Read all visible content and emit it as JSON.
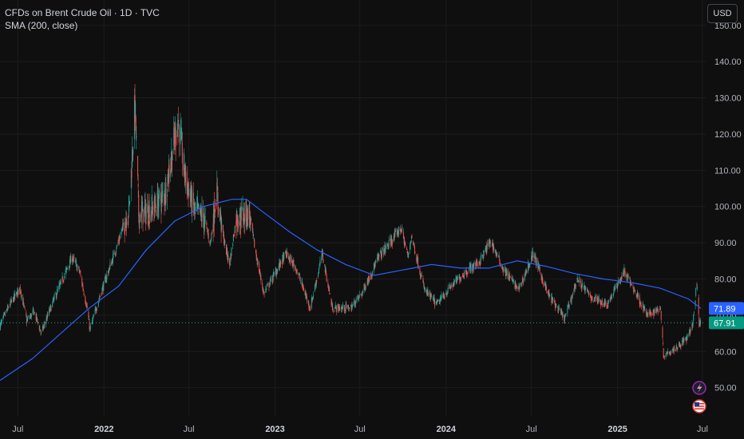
{
  "legend": {
    "symbol_title": "CFDs on Brent Crude Oil · 1D · TVC",
    "indicator": "SMA (200, close)"
  },
  "currency_button": "USD",
  "colors": {
    "background": "#0f0f0f",
    "grid": "#1c1c1c",
    "up": "#26a69a",
    "down": "#ef5350",
    "sma": "#2962ff",
    "last_price_line": "#26a69a",
    "axis_text": "#b2b5be"
  },
  "icons": [
    "lightning-icon",
    "us-flag-icon"
  ],
  "chart_data": {
    "type": "candlestick",
    "title": "CFDs on Brent Crude Oil · 1D · TVC",
    "y_axis": {
      "ticks": [
        "50.00",
        "60.00",
        "70.00",
        "80.00",
        "90.00",
        "100.00",
        "110.00",
        "120.00",
        "130.00",
        "140.00",
        "150.00"
      ],
      "range": [
        42,
        157
      ],
      "position": "right"
    },
    "x_axis": {
      "range": [
        "2021-05-24",
        "2025-07-08"
      ],
      "ticks": [
        {
          "label": "Jul",
          "date": "2021-07-01",
          "bold": false
        },
        {
          "label": "2022",
          "date": "2022-01-01",
          "bold": true
        },
        {
          "label": "Jul",
          "date": "2022-07-01",
          "bold": false
        },
        {
          "label": "2023",
          "date": "2023-01-01",
          "bold": true
        },
        {
          "label": "Jul",
          "date": "2023-07-01",
          "bold": false
        },
        {
          "label": "2024",
          "date": "2024-01-01",
          "bold": true
        },
        {
          "label": "Jul",
          "date": "2024-07-01",
          "bold": false
        },
        {
          "label": "2025",
          "date": "2025-01-01",
          "bold": true
        },
        {
          "label": "Jul",
          "date": "2025-07-01",
          "bold": false
        }
      ]
    },
    "price_path": [
      [
        "2021-05-24",
        67
      ],
      [
        "2021-06-10",
        72
      ],
      [
        "2021-07-06",
        77.5
      ],
      [
        "2021-07-20",
        68.5
      ],
      [
        "2021-08-05",
        71
      ],
      [
        "2021-08-20",
        65
      ],
      [
        "2021-09-15",
        74
      ],
      [
        "2021-10-25",
        86
      ],
      [
        "2021-11-10",
        82
      ],
      [
        "2021-11-26",
        72
      ],
      [
        "2021-12-02",
        66
      ],
      [
        "2021-12-20",
        74
      ],
      [
        "2022-01-10",
        82
      ],
      [
        "2022-01-31",
        90
      ],
      [
        "2022-02-24",
        100
      ],
      [
        "2022-03-08",
        128
      ],
      [
        "2022-03-16",
        98
      ],
      [
        "2022-04-11",
        99
      ],
      [
        "2022-05-10",
        103
      ],
      [
        "2022-06-08",
        124
      ],
      [
        "2022-06-22",
        109
      ],
      [
        "2022-07-12",
        99
      ],
      [
        "2022-08-01",
        97
      ],
      [
        "2022-08-16",
        90
      ],
      [
        "2022-08-29",
        104
      ],
      [
        "2022-09-15",
        90
      ],
      [
        "2022-09-26",
        84
      ],
      [
        "2022-10-10",
        97
      ],
      [
        "2022-11-07",
        98
      ],
      [
        "2022-11-21",
        87
      ],
      [
        "2022-12-08",
        76
      ],
      [
        "2023-01-03",
        82
      ],
      [
        "2023-01-24",
        87
      ],
      [
        "2023-02-15",
        83
      ],
      [
        "2023-03-17",
        72
      ],
      [
        "2023-04-12",
        87
      ],
      [
        "2023-05-03",
        72
      ],
      [
        "2023-06-12",
        72
      ],
      [
        "2023-07-05",
        76
      ],
      [
        "2023-08-10",
        86
      ],
      [
        "2023-09-27",
        94
      ],
      [
        "2023-10-12",
        86
      ],
      [
        "2023-10-19",
        92
      ],
      [
        "2023-11-16",
        77
      ],
      [
        "2023-12-12",
        73
      ],
      [
        "2024-01-12",
        78
      ],
      [
        "2024-02-12",
        82
      ],
      [
        "2024-03-14",
        85
      ],
      [
        "2024-04-05",
        90.5
      ],
      [
        "2024-05-01",
        83
      ],
      [
        "2024-06-04",
        77
      ],
      [
        "2024-07-05",
        87
      ],
      [
        "2024-08-05",
        76
      ],
      [
        "2024-09-10",
        69
      ],
      [
        "2024-10-07",
        80
      ],
      [
        "2024-11-05",
        75
      ],
      [
        "2024-12-10",
        73
      ],
      [
        "2025-01-15",
        82
      ],
      [
        "2025-02-10",
        76
      ],
      [
        "2025-03-05",
        70
      ],
      [
        "2025-04-03",
        72
      ],
      [
        "2025-04-09",
        59
      ],
      [
        "2025-05-05",
        61
      ],
      [
        "2025-06-01",
        64
      ],
      [
        "2025-06-11",
        68
      ],
      [
        "2025-06-19",
        79
      ],
      [
        "2025-06-24",
        68
      ],
      [
        "2025-06-27",
        67.9
      ]
    ],
    "sma_200": [
      [
        "2021-05-24",
        52
      ],
      [
        "2021-08-01",
        58
      ],
      [
        "2021-10-01",
        65
      ],
      [
        "2021-12-01",
        72
      ],
      [
        "2022-02-01",
        78
      ],
      [
        "2022-04-01",
        88
      ],
      [
        "2022-06-01",
        96
      ],
      [
        "2022-08-01",
        100
      ],
      [
        "2022-10-01",
        102
      ],
      [
        "2022-11-01",
        102
      ],
      [
        "2022-12-01",
        99
      ],
      [
        "2023-02-01",
        93
      ],
      [
        "2023-04-01",
        88
      ],
      [
        "2023-06-01",
        84
      ],
      [
        "2023-08-01",
        81
      ],
      [
        "2023-10-01",
        82.5
      ],
      [
        "2023-12-01",
        84
      ],
      [
        "2024-02-01",
        83
      ],
      [
        "2024-04-01",
        83
      ],
      [
        "2024-06-01",
        85
      ],
      [
        "2024-08-01",
        83.5
      ],
      [
        "2024-10-01",
        81.5
      ],
      [
        "2024-12-01",
        80
      ],
      [
        "2025-02-01",
        79
      ],
      [
        "2025-04-01",
        77.5
      ],
      [
        "2025-06-01",
        74.5
      ],
      [
        "2025-06-28",
        71.89
      ]
    ],
    "last_price": 67.91,
    "sma_last": 71.89,
    "last_price_label": "67.91",
    "sma_label": "71.89",
    "series": [
      {
        "name": "SMA (200, close)",
        "type": "line"
      }
    ],
    "grid": true
  }
}
